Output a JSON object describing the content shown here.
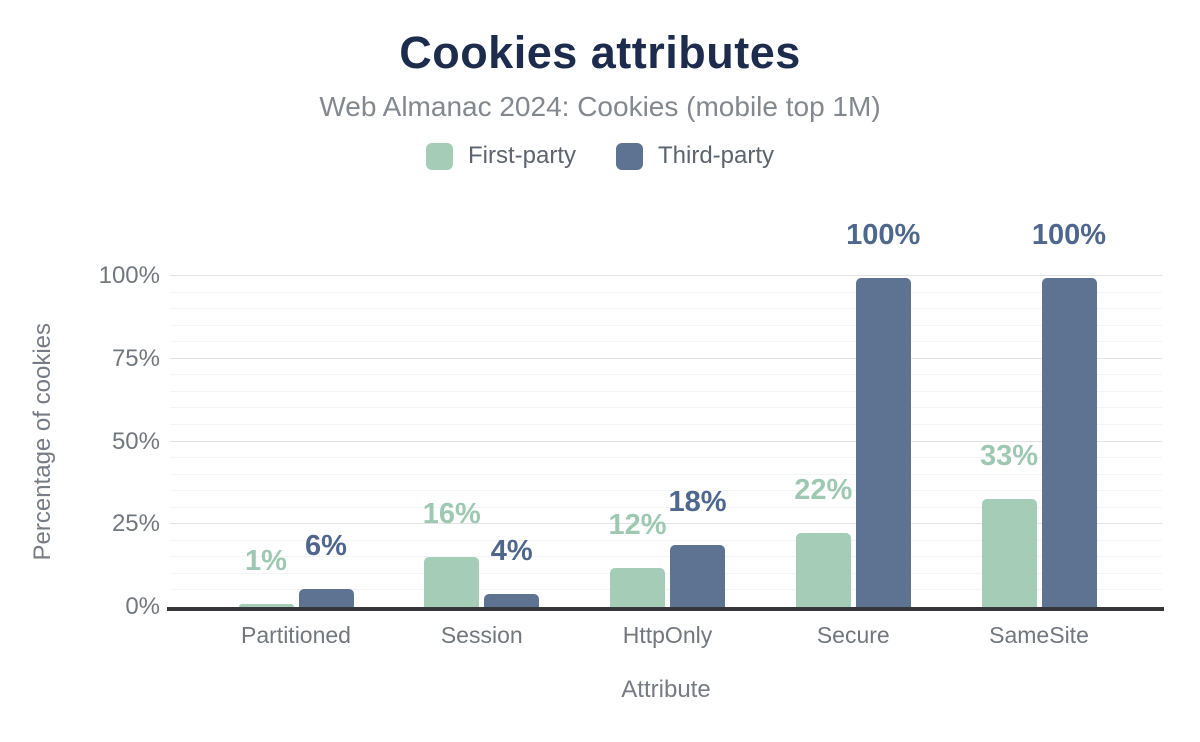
{
  "chart_data": {
    "type": "bar",
    "title": "Cookies attributes",
    "subtitle": "Web Almanac 2024: Cookies (mobile top 1M)",
    "xlabel": "Attribute",
    "ylabel": "Percentage of cookies",
    "categories": [
      "Partitioned",
      "Session",
      "HttpOnly",
      "Secure",
      "SameSite"
    ],
    "series": [
      {
        "name": "First-party",
        "color": "#a4ccb7",
        "label_color": "#9fc8b2",
        "values_pct": [
          1,
          16,
          12,
          22,
          33
        ],
        "data_labels": [
          "1%",
          "16%",
          "12%",
          "22%",
          "33%"
        ],
        "draw_heights_pct": [
          0.8,
          15.0,
          11.7,
          22.3,
          32.5
        ]
      },
      {
        "name": "Third-party",
        "color": "#5e7392",
        "label_color": "#4f668d",
        "values_pct": [
          6,
          4,
          18,
          100,
          100
        ],
        "data_labels": [
          "6%",
          "4%",
          "18%",
          "100%",
          "100%"
        ],
        "draw_heights_pct": [
          5.4,
          3.9,
          18.6,
          99.3,
          99.3
        ]
      }
    ],
    "ylim": [
      0,
      100
    ],
    "y_ticks": [
      {
        "value": 0,
        "label": "0%"
      },
      {
        "value": 25,
        "label": "25%"
      },
      {
        "value": 50,
        "label": "50%"
      },
      {
        "value": 75,
        "label": "75%"
      },
      {
        "value": 100,
        "label": "100%"
      }
    ],
    "y_minor_step": 5,
    "grid": true,
    "legend_position": "top-center",
    "colors": {
      "title_text": "#1d2b4d",
      "subtitle_text": "#83888f",
      "axis_text": "#72777e",
      "grid_major": "#e1e3e6",
      "grid_minor": "#f3f4f6",
      "axis_line": "#35373a"
    }
  }
}
